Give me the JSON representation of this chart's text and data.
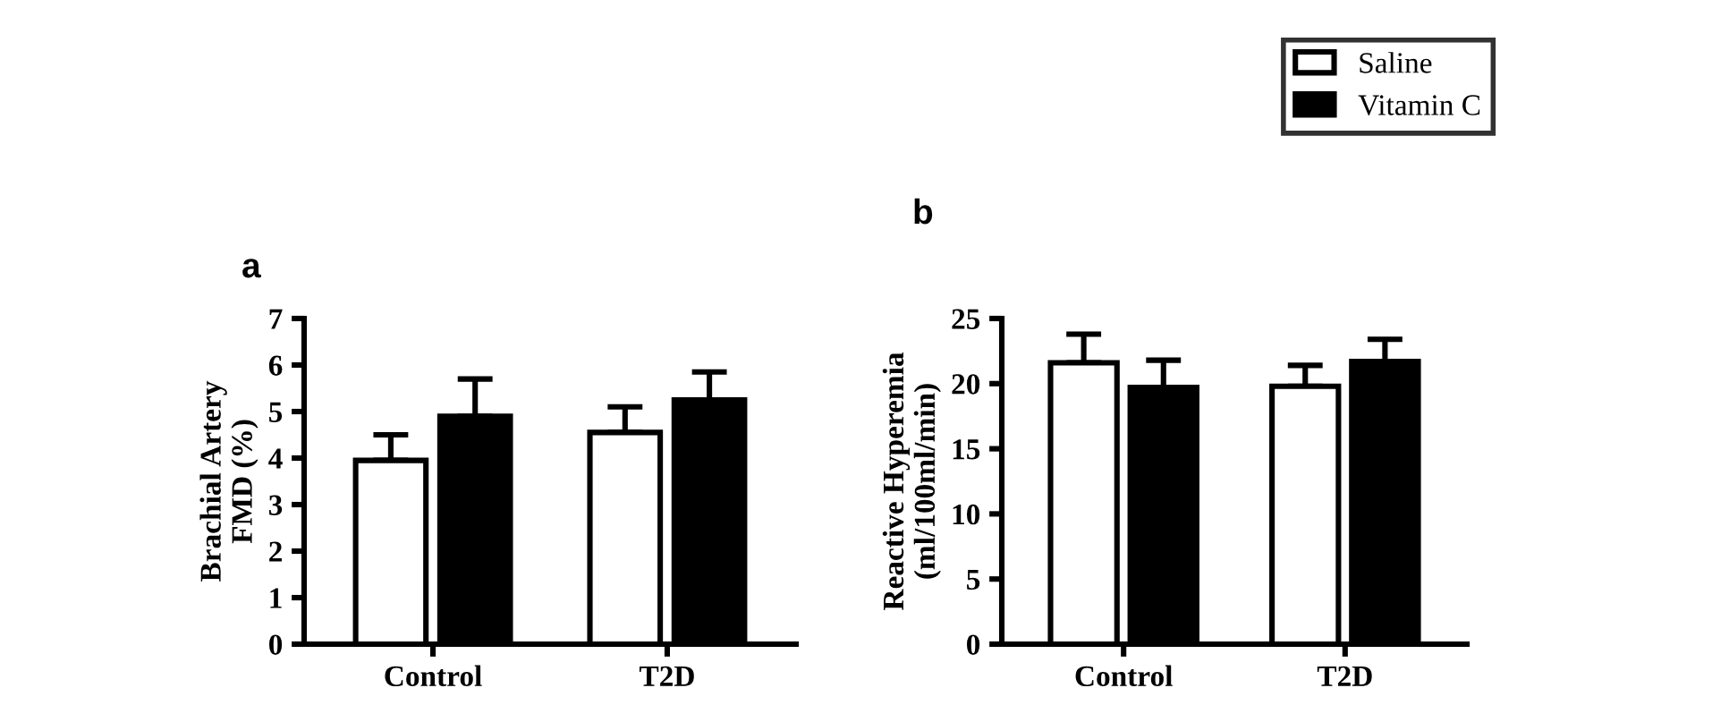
{
  "chart_data": [
    {
      "type": "bar",
      "title": "a",
      "ylabel": "Brachial Artery\nFMD (%)",
      "categories": [
        "Control",
        "T2D"
      ],
      "ylim": [
        0,
        7
      ],
      "yticks": [
        0,
        1,
        2,
        3,
        4,
        5,
        6,
        7
      ],
      "grid": false,
      "legend": "top right",
      "series": [
        {
          "name": "Saline",
          "color": "#ffffff",
          "values": [
            3.95,
            4.55
          ],
          "errors": [
            [
              3.95,
              4.5
            ],
            [
              4.55,
              5.1
            ]
          ]
        },
        {
          "name": "Vitamin C",
          "color": "#000000",
          "values": [
            4.9,
            5.25
          ],
          "errors": [
            [
              4.9,
              5.7
            ],
            [
              5.25,
              5.85
            ]
          ]
        }
      ]
    },
    {
      "type": "bar",
      "title": "b",
      "ylabel": "Reactive Hyperemia\n(ml/100ml/min)",
      "categories": [
        "Control",
        "T2D"
      ],
      "ylim": [
        0,
        25
      ],
      "yticks": [
        0,
        5,
        10,
        15,
        20,
        25
      ],
      "grid": false,
      "series": [
        {
          "color": "#ffffff",
          "values": [
            21.6,
            19.8
          ],
          "errors": [
            [
              21.6,
              23.8
            ],
            [
              19.8,
              21.4
            ]
          ]
        },
        {
          "color": "#000000",
          "values": [
            19.7,
            21.7
          ],
          "errors": [
            [
              19.7,
              21.8
            ],
            [
              21.7,
              23.4
            ]
          ]
        }
      ]
    }
  ]
}
